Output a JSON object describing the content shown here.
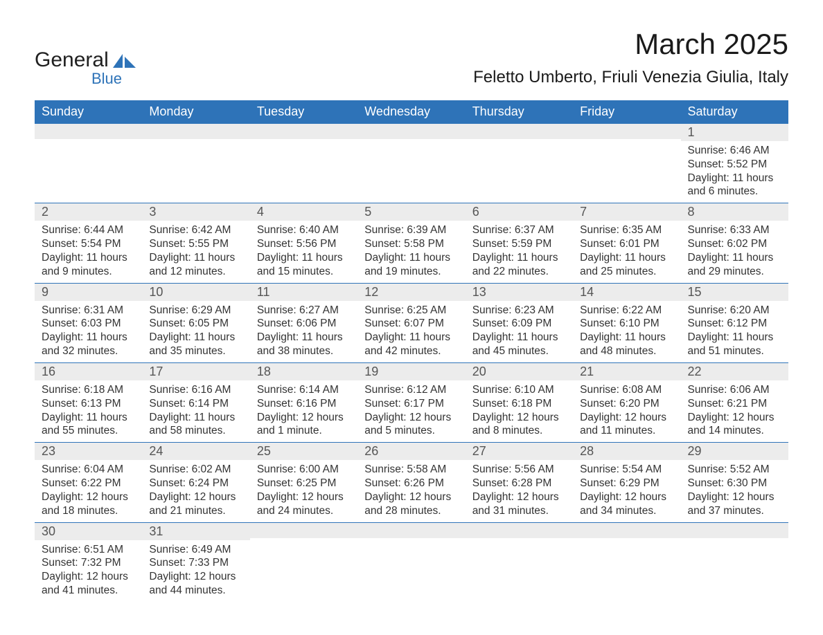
{
  "brand": {
    "word1": "General",
    "word2": "Blue",
    "accent_color": "#2e73b8",
    "text_color": "#202020"
  },
  "title": "March 2025",
  "location": "Feletto Umberto, Friuli Venezia Giulia, Italy",
  "colors": {
    "header_bg": "#2e73b8",
    "header_fg": "#ffffff",
    "strip_bg": "#ececec",
    "strip_fg": "#555555",
    "body_fg": "#333333",
    "row_border": "#2e73b8",
    "page_bg": "#ffffff"
  },
  "typography": {
    "month_title_fontsize": 42,
    "location_fontsize": 24,
    "dow_fontsize": 18,
    "daynum_fontsize": 18,
    "body_fontsize": 15.5,
    "font_family": "Arial"
  },
  "calendar": {
    "type": "table",
    "columns": [
      "Sunday",
      "Monday",
      "Tuesday",
      "Wednesday",
      "Thursday",
      "Friday",
      "Saturday"
    ],
    "weeks": [
      [
        {
          "n": "",
          "sunrise": "",
          "sunset": "",
          "daylight": ""
        },
        {
          "n": "",
          "sunrise": "",
          "sunset": "",
          "daylight": ""
        },
        {
          "n": "",
          "sunrise": "",
          "sunset": "",
          "daylight": ""
        },
        {
          "n": "",
          "sunrise": "",
          "sunset": "",
          "daylight": ""
        },
        {
          "n": "",
          "sunrise": "",
          "sunset": "",
          "daylight": ""
        },
        {
          "n": "",
          "sunrise": "",
          "sunset": "",
          "daylight": ""
        },
        {
          "n": "1",
          "sunrise": "Sunrise: 6:46 AM",
          "sunset": "Sunset: 5:52 PM",
          "daylight": "Daylight: 11 hours and 6 minutes."
        }
      ],
      [
        {
          "n": "2",
          "sunrise": "Sunrise: 6:44 AM",
          "sunset": "Sunset: 5:54 PM",
          "daylight": "Daylight: 11 hours and 9 minutes."
        },
        {
          "n": "3",
          "sunrise": "Sunrise: 6:42 AM",
          "sunset": "Sunset: 5:55 PM",
          "daylight": "Daylight: 11 hours and 12 minutes."
        },
        {
          "n": "4",
          "sunrise": "Sunrise: 6:40 AM",
          "sunset": "Sunset: 5:56 PM",
          "daylight": "Daylight: 11 hours and 15 minutes."
        },
        {
          "n": "5",
          "sunrise": "Sunrise: 6:39 AM",
          "sunset": "Sunset: 5:58 PM",
          "daylight": "Daylight: 11 hours and 19 minutes."
        },
        {
          "n": "6",
          "sunrise": "Sunrise: 6:37 AM",
          "sunset": "Sunset: 5:59 PM",
          "daylight": "Daylight: 11 hours and 22 minutes."
        },
        {
          "n": "7",
          "sunrise": "Sunrise: 6:35 AM",
          "sunset": "Sunset: 6:01 PM",
          "daylight": "Daylight: 11 hours and 25 minutes."
        },
        {
          "n": "8",
          "sunrise": "Sunrise: 6:33 AM",
          "sunset": "Sunset: 6:02 PM",
          "daylight": "Daylight: 11 hours and 29 minutes."
        }
      ],
      [
        {
          "n": "9",
          "sunrise": "Sunrise: 6:31 AM",
          "sunset": "Sunset: 6:03 PM",
          "daylight": "Daylight: 11 hours and 32 minutes."
        },
        {
          "n": "10",
          "sunrise": "Sunrise: 6:29 AM",
          "sunset": "Sunset: 6:05 PM",
          "daylight": "Daylight: 11 hours and 35 minutes."
        },
        {
          "n": "11",
          "sunrise": "Sunrise: 6:27 AM",
          "sunset": "Sunset: 6:06 PM",
          "daylight": "Daylight: 11 hours and 38 minutes."
        },
        {
          "n": "12",
          "sunrise": "Sunrise: 6:25 AM",
          "sunset": "Sunset: 6:07 PM",
          "daylight": "Daylight: 11 hours and 42 minutes."
        },
        {
          "n": "13",
          "sunrise": "Sunrise: 6:23 AM",
          "sunset": "Sunset: 6:09 PM",
          "daylight": "Daylight: 11 hours and 45 minutes."
        },
        {
          "n": "14",
          "sunrise": "Sunrise: 6:22 AM",
          "sunset": "Sunset: 6:10 PM",
          "daylight": "Daylight: 11 hours and 48 minutes."
        },
        {
          "n": "15",
          "sunrise": "Sunrise: 6:20 AM",
          "sunset": "Sunset: 6:12 PM",
          "daylight": "Daylight: 11 hours and 51 minutes."
        }
      ],
      [
        {
          "n": "16",
          "sunrise": "Sunrise: 6:18 AM",
          "sunset": "Sunset: 6:13 PM",
          "daylight": "Daylight: 11 hours and 55 minutes."
        },
        {
          "n": "17",
          "sunrise": "Sunrise: 6:16 AM",
          "sunset": "Sunset: 6:14 PM",
          "daylight": "Daylight: 11 hours and 58 minutes."
        },
        {
          "n": "18",
          "sunrise": "Sunrise: 6:14 AM",
          "sunset": "Sunset: 6:16 PM",
          "daylight": "Daylight: 12 hours and 1 minute."
        },
        {
          "n": "19",
          "sunrise": "Sunrise: 6:12 AM",
          "sunset": "Sunset: 6:17 PM",
          "daylight": "Daylight: 12 hours and 5 minutes."
        },
        {
          "n": "20",
          "sunrise": "Sunrise: 6:10 AM",
          "sunset": "Sunset: 6:18 PM",
          "daylight": "Daylight: 12 hours and 8 minutes."
        },
        {
          "n": "21",
          "sunrise": "Sunrise: 6:08 AM",
          "sunset": "Sunset: 6:20 PM",
          "daylight": "Daylight: 12 hours and 11 minutes."
        },
        {
          "n": "22",
          "sunrise": "Sunrise: 6:06 AM",
          "sunset": "Sunset: 6:21 PM",
          "daylight": "Daylight: 12 hours and 14 minutes."
        }
      ],
      [
        {
          "n": "23",
          "sunrise": "Sunrise: 6:04 AM",
          "sunset": "Sunset: 6:22 PM",
          "daylight": "Daylight: 12 hours and 18 minutes."
        },
        {
          "n": "24",
          "sunrise": "Sunrise: 6:02 AM",
          "sunset": "Sunset: 6:24 PM",
          "daylight": "Daylight: 12 hours and 21 minutes."
        },
        {
          "n": "25",
          "sunrise": "Sunrise: 6:00 AM",
          "sunset": "Sunset: 6:25 PM",
          "daylight": "Daylight: 12 hours and 24 minutes."
        },
        {
          "n": "26",
          "sunrise": "Sunrise: 5:58 AM",
          "sunset": "Sunset: 6:26 PM",
          "daylight": "Daylight: 12 hours and 28 minutes."
        },
        {
          "n": "27",
          "sunrise": "Sunrise: 5:56 AM",
          "sunset": "Sunset: 6:28 PM",
          "daylight": "Daylight: 12 hours and 31 minutes."
        },
        {
          "n": "28",
          "sunrise": "Sunrise: 5:54 AM",
          "sunset": "Sunset: 6:29 PM",
          "daylight": "Daylight: 12 hours and 34 minutes."
        },
        {
          "n": "29",
          "sunrise": "Sunrise: 5:52 AM",
          "sunset": "Sunset: 6:30 PM",
          "daylight": "Daylight: 12 hours and 37 minutes."
        }
      ],
      [
        {
          "n": "30",
          "sunrise": "Sunrise: 6:51 AM",
          "sunset": "Sunset: 7:32 PM",
          "daylight": "Daylight: 12 hours and 41 minutes."
        },
        {
          "n": "31",
          "sunrise": "Sunrise: 6:49 AM",
          "sunset": "Sunset: 7:33 PM",
          "daylight": "Daylight: 12 hours and 44 minutes."
        },
        {
          "n": "",
          "sunrise": "",
          "sunset": "",
          "daylight": ""
        },
        {
          "n": "",
          "sunrise": "",
          "sunset": "",
          "daylight": ""
        },
        {
          "n": "",
          "sunrise": "",
          "sunset": "",
          "daylight": ""
        },
        {
          "n": "",
          "sunrise": "",
          "sunset": "",
          "daylight": ""
        },
        {
          "n": "",
          "sunrise": "",
          "sunset": "",
          "daylight": ""
        }
      ]
    ]
  }
}
